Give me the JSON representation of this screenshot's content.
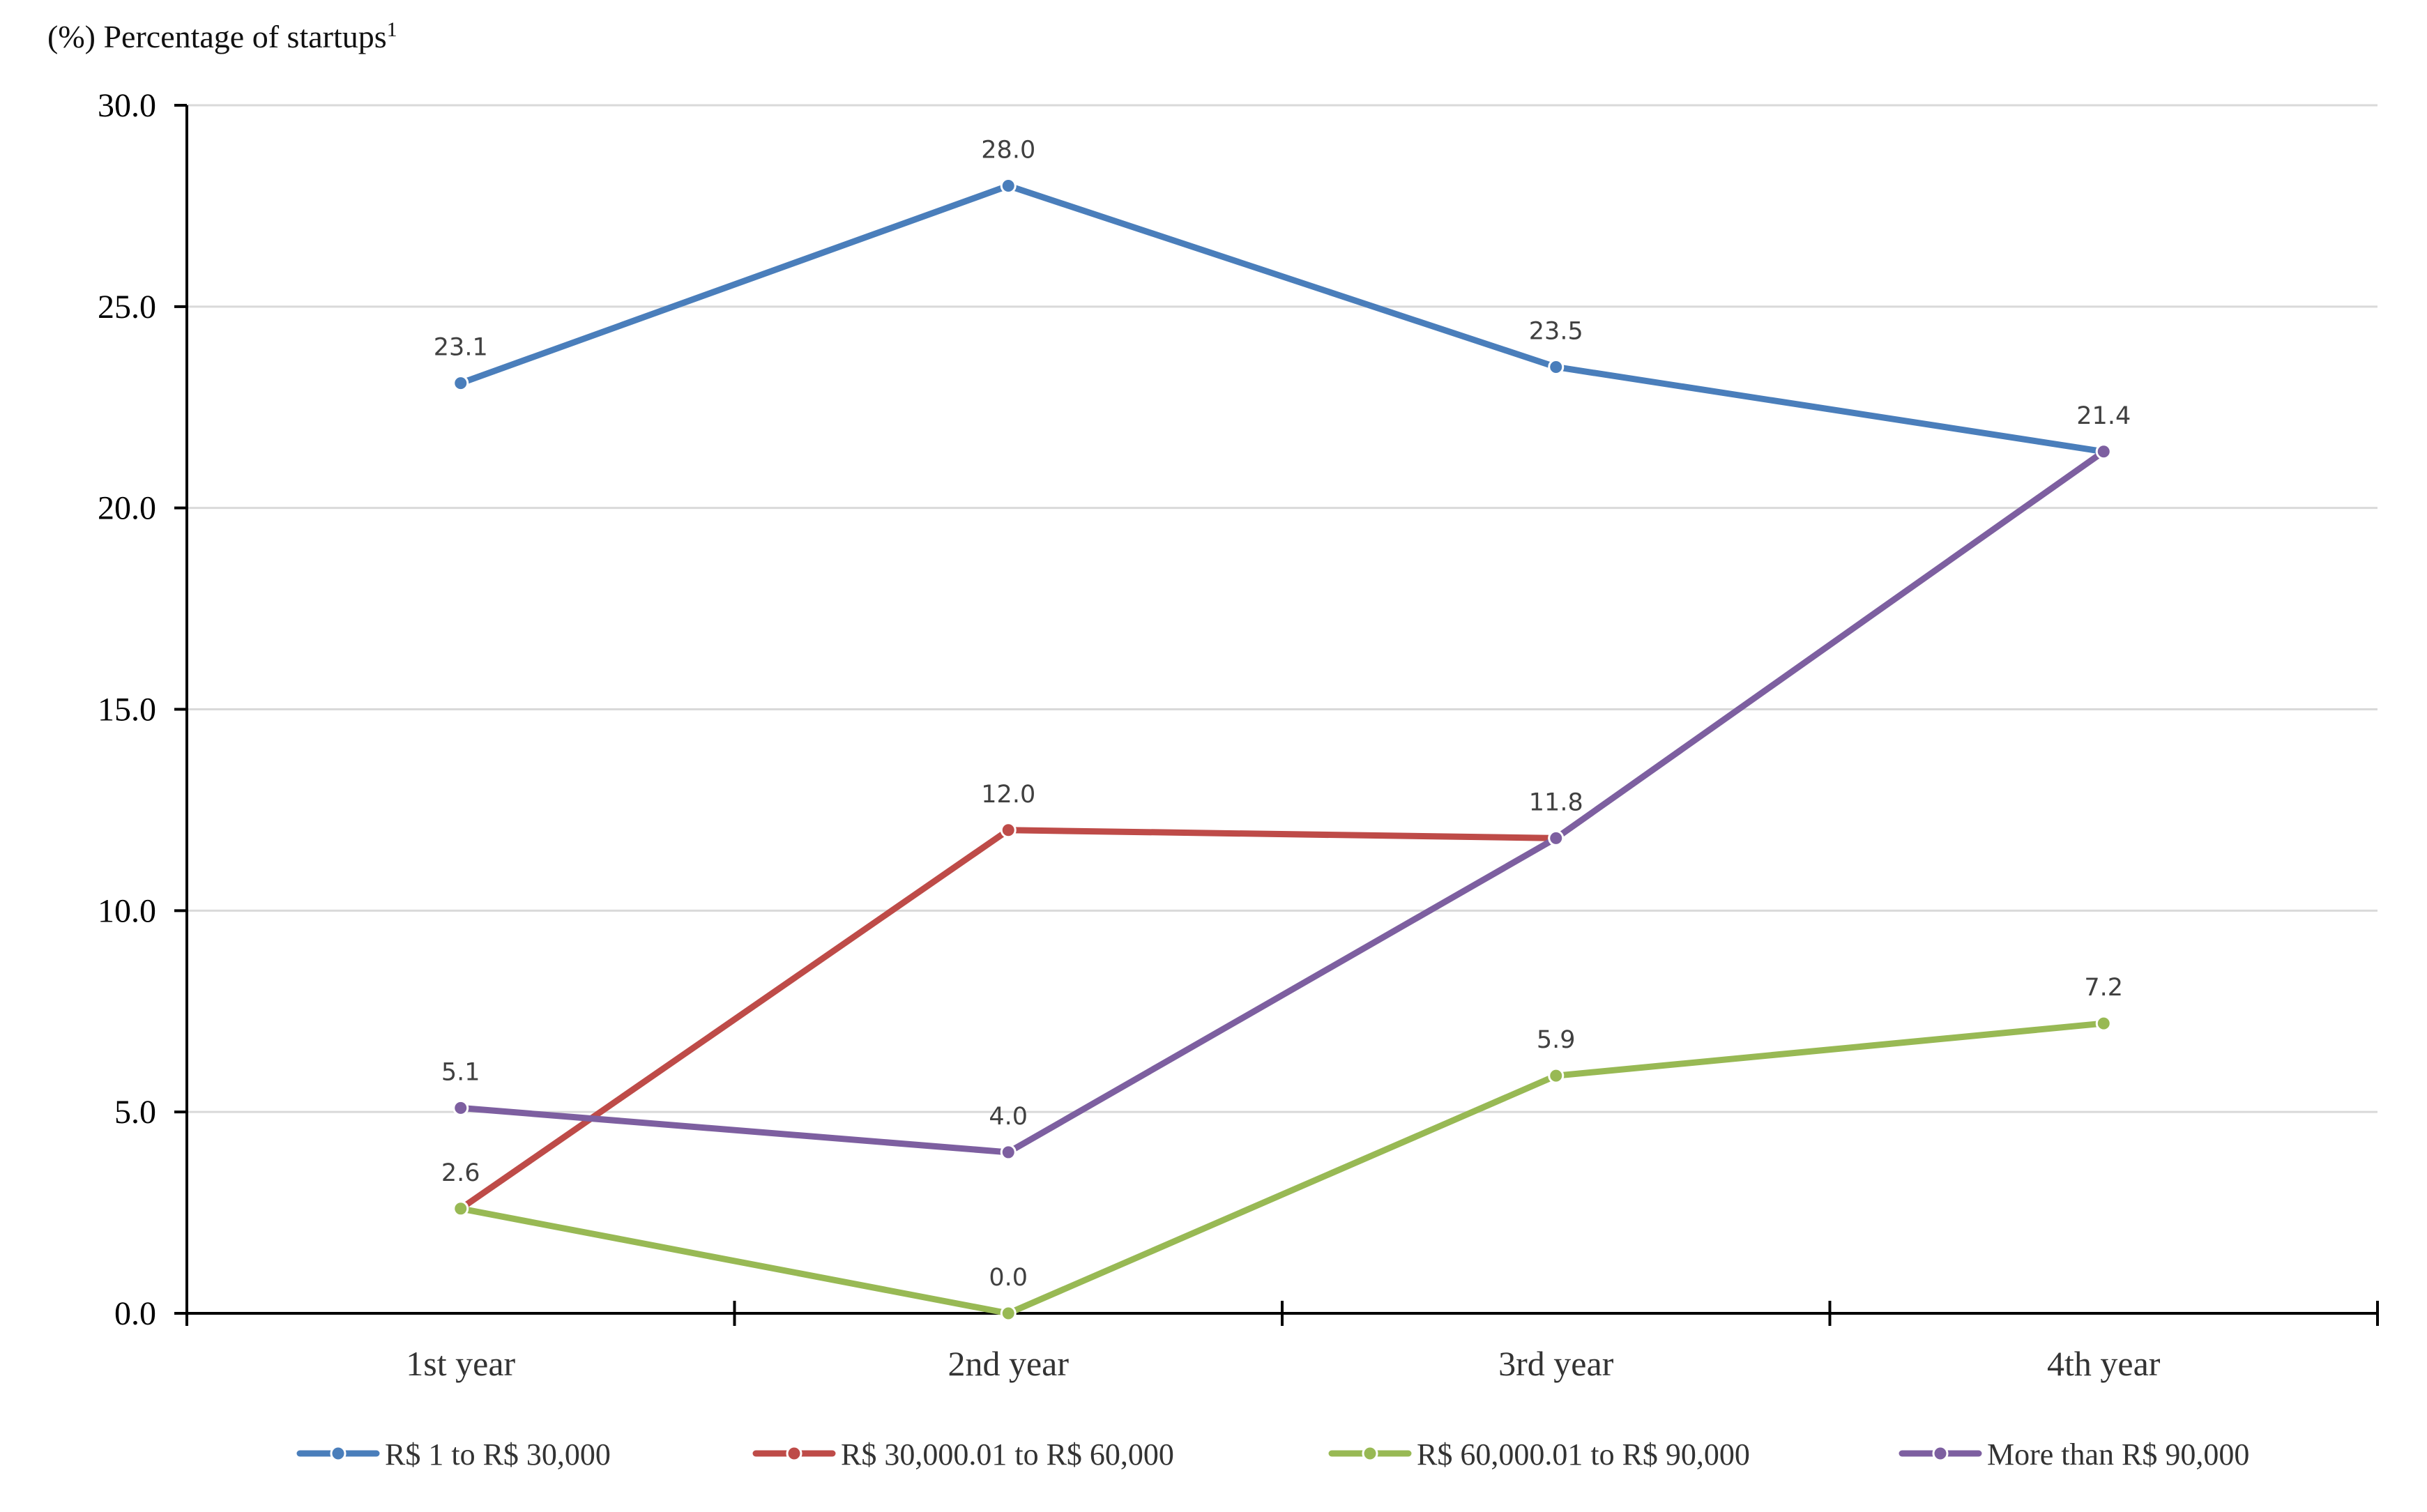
{
  "chart_data": {
    "type": "line",
    "title": "",
    "ylabel": "(%) Percentage of startups",
    "ylabel_superscript": "1",
    "xlabel": "",
    "categories": [
      "1st year",
      "2nd year",
      "3rd year",
      "4th year"
    ],
    "ylim": [
      0,
      30
    ],
    "yticks": [
      0,
      5,
      10,
      15,
      20,
      25,
      30
    ],
    "ytick_labels": [
      "0.0",
      "5.0",
      "10.0",
      "15.0",
      "20.0",
      "25.0",
      "30.0"
    ],
    "grid": true,
    "legend_position": "bottom",
    "series": [
      {
        "name": "R$ 1 to R$ 30,000",
        "color": "#4a7ebb",
        "values": [
          23.1,
          28.0,
          23.5,
          21.4
        ],
        "labels": [
          "23.1",
          "28.0",
          "23.5",
          "21.4"
        ]
      },
      {
        "name": "R$ 30,000.01 to R$ 60,000",
        "color": "#be4b48",
        "values": [
          2.6,
          12.0,
          11.8,
          null
        ],
        "labels": [
          "2.6",
          "12.0",
          "11.8",
          null
        ]
      },
      {
        "name": "R$ 60,000.01 to R$ 90,000",
        "color": "#98b954",
        "values": [
          2.6,
          0.0,
          5.9,
          7.2
        ],
        "labels": [
          null,
          "0.0",
          "5.9",
          "7.2"
        ]
      },
      {
        "name": "More than R$ 90,000",
        "color": "#7d5fa0",
        "values": [
          5.1,
          4.0,
          11.8,
          21.4
        ],
        "labels": [
          "5.1",
          "4.0",
          null,
          null
        ]
      }
    ]
  }
}
